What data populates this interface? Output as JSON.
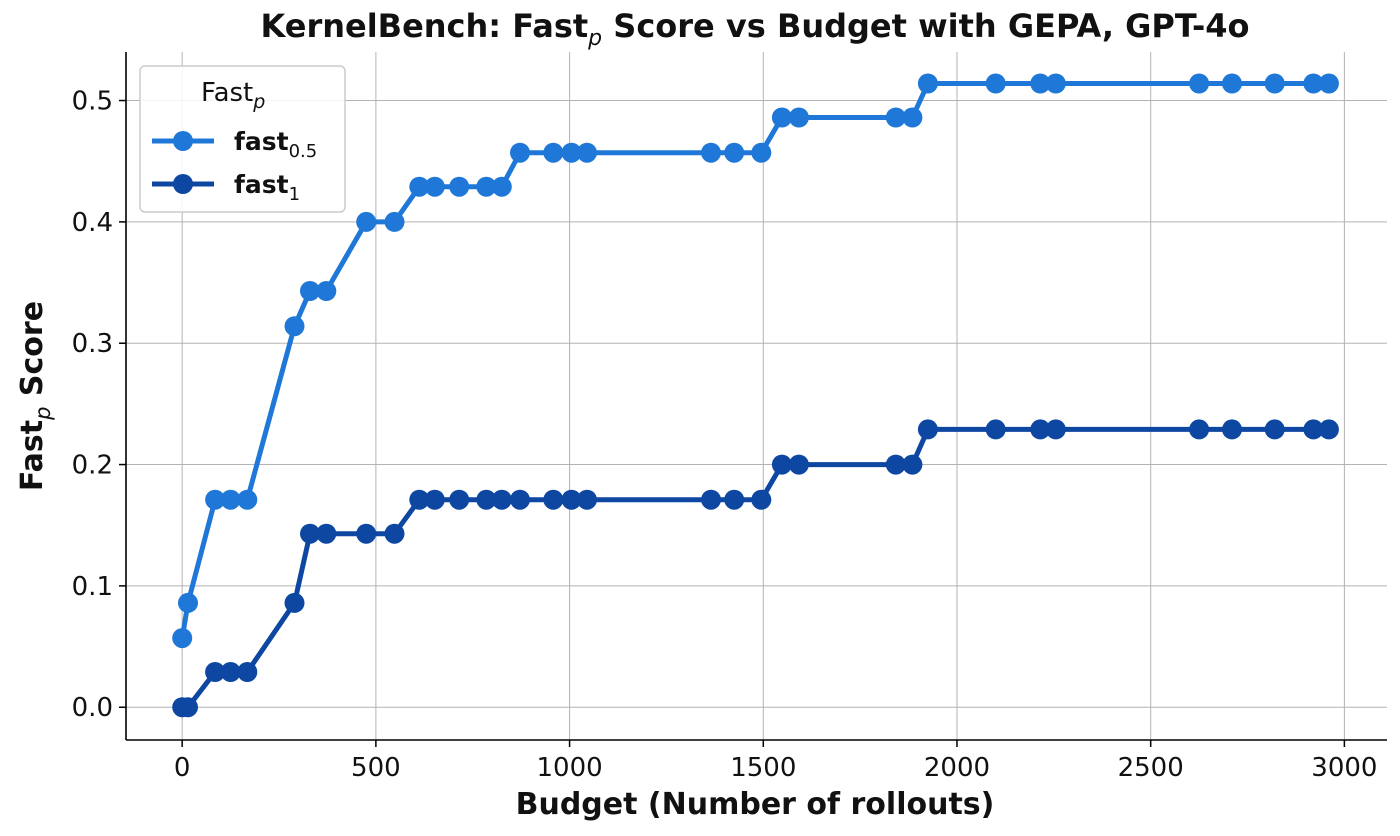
{
  "chart_data": {
    "type": "line",
    "title_parts": [
      "KernelBench: Fast",
      "p",
      " Score vs Budget with GEPA, GPT-4o"
    ],
    "xlabel": "Budget (Number of rollouts)",
    "ylabel_parts": [
      "Fast",
      "p",
      " Score"
    ],
    "xlim": [
      -145,
      3110
    ],
    "ylim": [
      -0.027,
      0.54
    ],
    "x_ticks": [
      0,
      500,
      1000,
      1500,
      2000,
      2500,
      3000
    ],
    "y_ticks": [
      0.0,
      0.1,
      0.2,
      0.3,
      0.4,
      0.5
    ],
    "y_tick_labels": [
      "0.0",
      "0.1",
      "0.2",
      "0.3",
      "0.4",
      "0.5"
    ],
    "grid": true,
    "legend": {
      "placement": "top-left",
      "title_parts": [
        "Fast",
        "p"
      ]
    },
    "series": [
      {
        "name_parts": [
          "fast",
          "0.5"
        ],
        "color": "#1f78d8",
        "points": [
          [
            0,
            0.057
          ],
          [
            15,
            0.086
          ],
          [
            85,
            0.171
          ],
          [
            125,
            0.171
          ],
          [
            168,
            0.171
          ],
          [
            290,
            0.314
          ],
          [
            330,
            0.343
          ],
          [
            372,
            0.343
          ],
          [
            475,
            0.4
          ],
          [
            548,
            0.4
          ],
          [
            612,
            0.429
          ],
          [
            652,
            0.429
          ],
          [
            715,
            0.429
          ],
          [
            785,
            0.429
          ],
          [
            825,
            0.429
          ],
          [
            872,
            0.457
          ],
          [
            958,
            0.457
          ],
          [
            1005,
            0.457
          ],
          [
            1045,
            0.457
          ],
          [
            1365,
            0.457
          ],
          [
            1425,
            0.457
          ],
          [
            1495,
            0.457
          ],
          [
            1548,
            0.486
          ],
          [
            1592,
            0.486
          ],
          [
            1842,
            0.486
          ],
          [
            1885,
            0.486
          ],
          [
            1925,
            0.514
          ],
          [
            2100,
            0.514
          ],
          [
            2215,
            0.514
          ],
          [
            2255,
            0.514
          ],
          [
            2625,
            0.514
          ],
          [
            2710,
            0.514
          ],
          [
            2820,
            0.514
          ],
          [
            2920,
            0.514
          ],
          [
            2960,
            0.514
          ]
        ]
      },
      {
        "name_parts": [
          "fast",
          "1"
        ],
        "color": "#0d47a1",
        "points": [
          [
            0,
            0.0
          ],
          [
            15,
            0.0
          ],
          [
            85,
            0.029
          ],
          [
            125,
            0.029
          ],
          [
            168,
            0.029
          ],
          [
            290,
            0.086
          ],
          [
            330,
            0.143
          ],
          [
            372,
            0.143
          ],
          [
            475,
            0.143
          ],
          [
            548,
            0.143
          ],
          [
            612,
            0.171
          ],
          [
            652,
            0.171
          ],
          [
            715,
            0.171
          ],
          [
            785,
            0.171
          ],
          [
            825,
            0.171
          ],
          [
            872,
            0.171
          ],
          [
            958,
            0.171
          ],
          [
            1005,
            0.171
          ],
          [
            1045,
            0.171
          ],
          [
            1365,
            0.171
          ],
          [
            1425,
            0.171
          ],
          [
            1495,
            0.171
          ],
          [
            1548,
            0.2
          ],
          [
            1592,
            0.2
          ],
          [
            1842,
            0.2
          ],
          [
            1885,
            0.2
          ],
          [
            1925,
            0.229
          ],
          [
            2100,
            0.229
          ],
          [
            2215,
            0.229
          ],
          [
            2255,
            0.229
          ],
          [
            2625,
            0.229
          ],
          [
            2710,
            0.229
          ],
          [
            2820,
            0.229
          ],
          [
            2920,
            0.229
          ],
          [
            2960,
            0.229
          ]
        ]
      }
    ]
  }
}
